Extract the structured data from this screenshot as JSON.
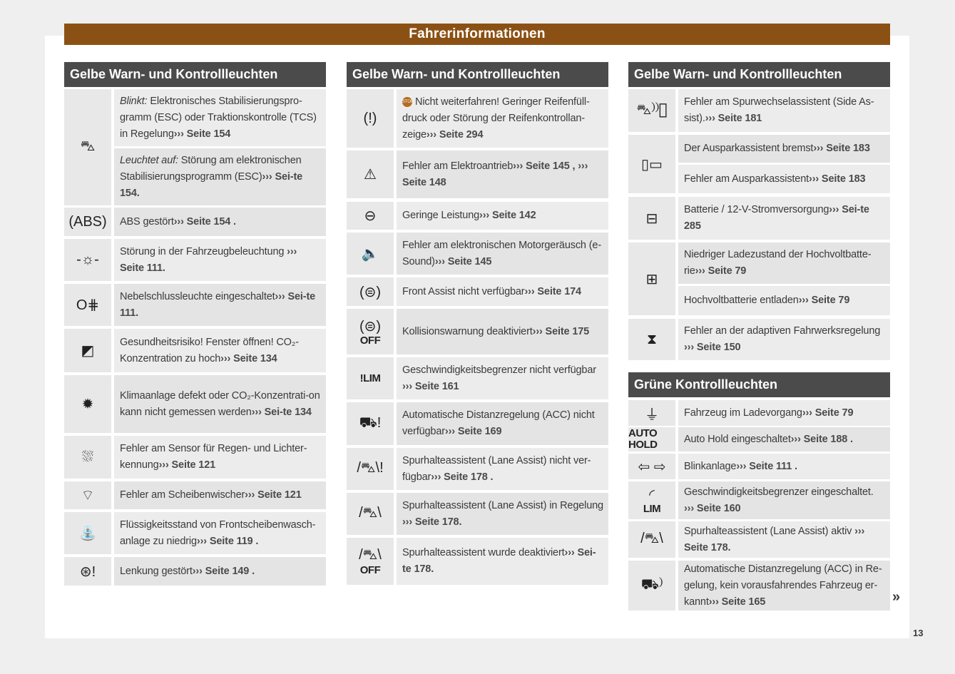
{
  "page_title": "Fahrerinformationen",
  "more_marker": "»",
  "page_number": "13",
  "colors": {
    "title_bar": "#8b5114",
    "section_header": "#4b4b4b",
    "row_bg": "#ececec"
  },
  "columns": [
    {
      "sections": [
        {
          "title": "Gelbe Warn- und Kontrollleuchten",
          "rows": [
            {
              "icon": "esc-car-skid-icon",
              "glyph": "⛍",
              "items": [
                {
                  "em": "Blinkt:",
                  "text": " Elektronisches Stabilisierungspro-gramm (ESC) oder Traktionskontrolle (TCS) in Regelung",
                  "ref": "››› Seite 154"
                },
                {
                  "em": "Leuchtet auf:",
                  "text": " Störung am elektronischen Stabilisierungsprogramm (ESC)",
                  "ref": "››› Sei-te 154."
                }
              ]
            },
            {
              "icon": "abs-icon",
              "glyph": "(ABS)",
              "items": [
                {
                  "text": "ABS gestört",
                  "ref": "››› Seite 154 ."
                }
              ]
            },
            {
              "icon": "bulb-warning-icon",
              "glyph": "-☼-",
              "items": [
                {
                  "text": "Störung in der Fahrzeugbeleuchtung ",
                  "ref": "››› Seite 111."
                }
              ]
            },
            {
              "icon": "rear-fog-light-icon",
              "glyph": "O⋕",
              "items": [
                {
                  "text": "Nebelschlussleuchte eingeschaltet",
                  "ref": "››› Sei-te 111."
                }
              ]
            },
            {
              "icon": "window-open-icon",
              "glyph": "◩",
              "items": [
                {
                  "text": "Gesundheitsrisiko! Fenster öffnen! CO₂-Konzentration zu hoch",
                  "ref": "››› Seite 134"
                }
              ]
            },
            {
              "icon": "air-conditioning-icon",
              "glyph": "✹",
              "items": [
                {
                  "text": "Klimaanlage defekt oder CO₂-Konzentrati-on kann nicht gemessen werden",
                  "ref": "››› Sei-te 134"
                }
              ]
            },
            {
              "icon": "rain-light-sensor-icon",
              "glyph": "⛆",
              "items": [
                {
                  "text": "Fehler am Sensor für Regen- und Lichter-kennung",
                  "ref": "››› Seite 121"
                }
              ]
            },
            {
              "icon": "wiper-icon",
              "glyph": "⌔",
              "items": [
                {
                  "text": "Fehler am Scheibenwischer",
                  "ref": "››› Seite 121"
                }
              ]
            },
            {
              "icon": "washer-fluid-icon",
              "glyph": "⛲",
              "items": [
                {
                  "text": "Flüssigkeitsstand von Frontscheibenwasch-anlage zu niedrig",
                  "ref": "››› Seite 119 ."
                }
              ]
            },
            {
              "icon": "steering-fault-icon",
              "glyph": "⊛!",
              "items": [
                {
                  "text": "Lenkung gestört",
                  "ref": "››› Seite 149 ."
                }
              ]
            }
          ]
        }
      ]
    },
    {
      "sections": [
        {
          "title": "Gelbe Warn- und Kontrollleuchten",
          "rows": [
            {
              "icon": "tire-pressure-icon",
              "glyph": "(!)",
              "items": [
                {
                  "pre_icon": "STOP",
                  "text": "Nicht weiterfahren! Geringer Reifenfüll-druck oder Störung der Reifenkontrollan-zeige",
                  "ref": "››› Seite 294"
                }
              ]
            },
            {
              "icon": "electric-drive-fault-icon",
              "glyph": "⚠",
              "items": [
                {
                  "text": "Fehler am Elektroantrieb",
                  "ref": "››› Seite 145 , ››› Seite 148"
                }
              ]
            },
            {
              "icon": "reduced-power-icon",
              "glyph": "⊖",
              "items": [
                {
                  "text": "Geringe Leistung",
                  "ref": "››› Seite 142"
                }
              ]
            },
            {
              "icon": "e-sound-icon",
              "glyph": "🔈",
              "items": [
                {
                  "text": "Fehler am elektronischen Motorgeräusch (e-Sound)",
                  "ref": "››› Seite 145"
                }
              ]
            },
            {
              "icon": "front-assist-icon",
              "glyph": "(⊜)",
              "items": [
                {
                  "text": "Front Assist nicht verfügbar",
                  "ref": "››› Seite 174"
                }
              ]
            },
            {
              "icon": "collision-warning-off-icon",
              "glyph": "(⊜)",
              "icon_text": "OFF",
              "items": [
                {
                  "text": "Kollisionswarnung deaktiviert",
                  "ref": "››› Seite 175"
                }
              ]
            },
            {
              "icon": "speed-limiter-fault-icon",
              "glyph": "",
              "icon_text": "!LIM",
              "items": [
                {
                  "text": "Geschwindigkeitsbegrenzer nicht verfügbar ",
                  "ref": "››› Seite 161"
                }
              ]
            },
            {
              "icon": "acc-fault-icon",
              "glyph": "⛟!",
              "items": [
                {
                  "text": "Automatische Distanzregelung (ACC) nicht verfügbar",
                  "ref": "››› Seite 169"
                }
              ]
            },
            {
              "icon": "lane-assist-fault-icon",
              "glyph": "/⛍\\!",
              "items": [
                {
                  "text": "Spurhalteassistent (Lane Assist) nicht ver-fügbar",
                  "ref": "››› Seite 178 ."
                }
              ]
            },
            {
              "icon": "lane-assist-active-icon",
              "glyph": "/⛍\\",
              "items": [
                {
                  "text": "Spurhalteassistent (Lane Assist) in Regelung ",
                  "ref": "››› Seite 178."
                }
              ]
            },
            {
              "icon": "lane-assist-off-icon",
              "glyph": "/⛍\\",
              "icon_text": "OFF",
              "items": [
                {
                  "text": "Spurhalteassistent wurde deaktiviert",
                  "ref": "››› Sei-te 178."
                }
              ]
            }
          ]
        }
      ]
    },
    {
      "sections": [
        {
          "title": "Gelbe Warn- und Kontrollleuchten",
          "rows": [
            {
              "icon": "side-assist-icon",
              "glyph": "⛍⁾⁾▯",
              "items": [
                {
                  "text": "Fehler am Spurwechselassistent (Side As-sist).",
                  "ref": "››› Seite 181"
                }
              ]
            },
            {
              "icon": "exit-assist-icon",
              "glyph": "▯▭",
              "items": [
                {
                  "text": "Der Ausparkassistent bremst",
                  "ref": "››› Seite 183"
                },
                {
                  "text": "Fehler am Ausparkassistent",
                  "ref": "››› Seite 183"
                }
              ]
            },
            {
              "icon": "battery-icon",
              "glyph": "⊟",
              "items": [
                {
                  "text": "Batterie / 12-V-Stromversorgung",
                  "ref": "››› Sei-te 285"
                }
              ]
            },
            {
              "icon": "high-voltage-battery-icon",
              "glyph": "⊞",
              "items": [
                {
                  "text": "Niedriger Ladezustand der Hochvoltbatte-rie",
                  "ref": "››› Seite 79"
                },
                {
                  "text": "Hochvoltbatterie entladen",
                  "ref": "››› Seite 79"
                }
              ]
            },
            {
              "icon": "adaptive-suspension-icon",
              "glyph": "⧗",
              "items": [
                {
                  "text": "Fehler an der adaptiven Fahrwerksregelung ",
                  "ref": "››› Seite 150"
                }
              ]
            }
          ]
        },
        {
          "title": "Grüne Kontrollleuchten",
          "rows": [
            {
              "icon": "charging-plug-icon",
              "glyph": "⏚",
              "items": [
                {
                  "text": "Fahrzeug im Ladevorgang",
                  "ref": "››› Seite 79"
                }
              ]
            },
            {
              "icon": "auto-hold-icon",
              "glyph": "",
              "icon_text": "AUTO HOLD",
              "items": [
                {
                  "text": "Auto Hold eingeschaltet",
                  "ref": "››› Seite 188 ."
                }
              ]
            },
            {
              "icon": "turn-signal-icon",
              "glyph": "⇦ ⇨",
              "items": [
                {
                  "text": "Blinkanlage",
                  "ref": "››› Seite 111 ."
                }
              ]
            },
            {
              "icon": "speed-limiter-icon",
              "glyph": "◜",
              "icon_text": "LIM",
              "items": [
                {
                  "text": "Geschwindigkeitsbegrenzer eingeschaltet. ",
                  "ref": "››› Seite 160"
                }
              ]
            },
            {
              "icon": "lane-assist-icon",
              "glyph": "/⛍\\",
              "items": [
                {
                  "text": "Spurhalteassistent (Lane Assist) aktiv ",
                  "ref": "››› Seite 178."
                }
              ]
            },
            {
              "icon": "acc-no-vehicle-icon",
              "glyph": "⛟⁾",
              "items": [
                {
                  "text": "Automatische Distanzregelung (ACC) in Re-gelung, kein vorausfahrendes Fahrzeug er-kannt",
                  "ref": "››› Seite 165"
                }
              ]
            }
          ]
        }
      ]
    }
  ]
}
